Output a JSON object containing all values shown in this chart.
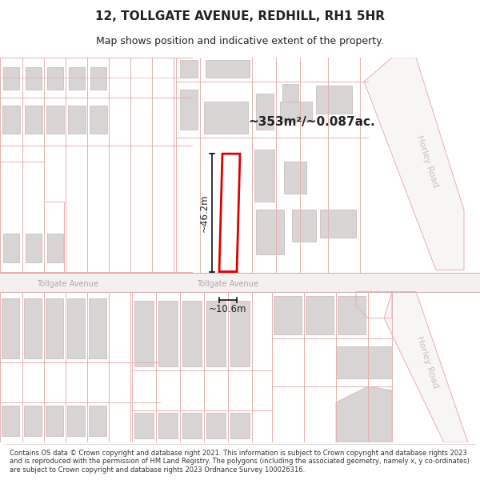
{
  "title_line1": "12, TOLLGATE AVENUE, REDHILL, RH1 5HR",
  "title_line2": "Map shows position and indicative extent of the property.",
  "area_label": "~353m²/~0.087ac.",
  "property_number": "12",
  "dimension_height": "~46.2m",
  "dimension_width": "~10.6m",
  "road_name_center": "Tollgate Avenue",
  "road_name_left": "Tollgate Avenue",
  "road_name_right1": "Horley Road",
  "road_name_right2": "Horley Road",
  "footer_text": "Contains OS data © Crown copyright and database right 2021. This information is subject to Crown copyright and database rights 2023 and is reproduced with the permission of HM Land Registry. The polygons (including the associated geometry, namely x, y co-ordinates) are subject to Crown copyright and database rights 2023 Ordnance Survey 100026316.",
  "bg_color": "#ffffff",
  "map_bg": "#ffffff",
  "outline_color": "#e8b0b0",
  "building_fill": "#d8d4d4",
  "building_outline": "#c0b8b8",
  "highlight_fill": "#ffffff",
  "highlight_outline": "#dd0000",
  "dim_line_color": "#111111",
  "text_color": "#222222",
  "road_text_color": "#aaaaaa",
  "right_road_text_color": "#c0c0c0"
}
